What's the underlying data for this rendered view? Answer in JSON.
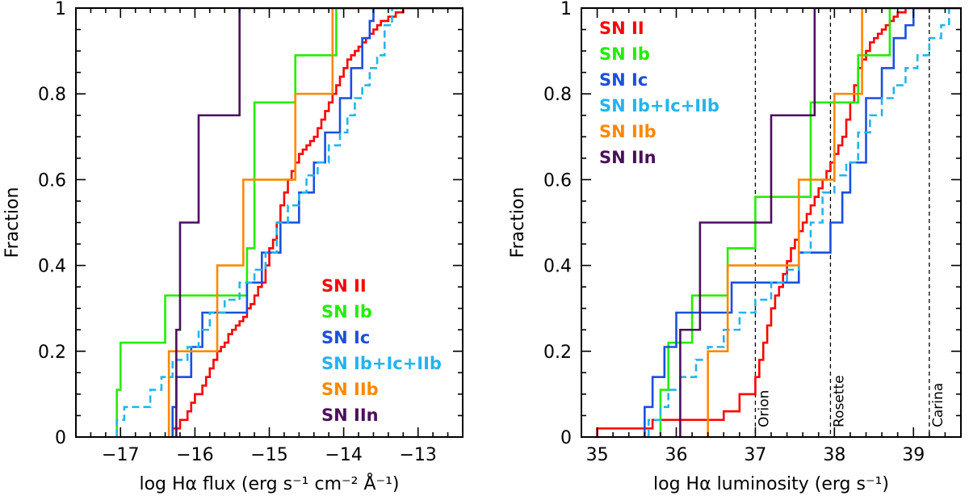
{
  "chart_data": [
    {
      "type": "line",
      "step": true,
      "ylabel": "Fraction",
      "xlabel": "log Hα flux (erg s⁻¹ cm⁻² Å⁻¹)",
      "xlim": [
        -17.6,
        -12.4
      ],
      "ylim": [
        0,
        1
      ],
      "xticks": [
        -17,
        -16,
        -15,
        -14,
        -13
      ],
      "xtick_labels": [
        "−17",
        "−16",
        "−15",
        "−14",
        "−13"
      ],
      "yticks": [
        0,
        0.2,
        0.4,
        0.6,
        0.8,
        1
      ],
      "ytick_labels": [
        "0",
        "0.2",
        "0.4",
        "0.6",
        "0.8",
        "1"
      ],
      "legend_position": "lower-right",
      "series": [
        {
          "name": "SN II",
          "color": "#ff0000",
          "dash": false,
          "x": [
            -16.3,
            -16.2,
            -16.1,
            -16.05,
            -16.0,
            -15.9,
            -15.85,
            -15.8,
            -15.75,
            -15.7,
            -15.65,
            -15.6,
            -15.55,
            -15.5,
            -15.45,
            -15.4,
            -15.35,
            -15.3,
            -15.25,
            -15.2,
            -15.15,
            -15.1,
            -15.05,
            -15.0,
            -14.95,
            -14.9,
            -14.85,
            -14.8,
            -14.75,
            -14.7,
            -14.65,
            -14.6,
            -14.55,
            -14.5,
            -14.45,
            -14.4,
            -14.35,
            -14.3,
            -14.25,
            -14.2,
            -14.15,
            -14.1,
            -14.05,
            -14.0,
            -13.95,
            -13.9,
            -13.85,
            -13.8,
            -13.75,
            -13.7,
            -13.65,
            -13.6,
            -13.55,
            -13.5,
            -13.4,
            -13.3,
            -13.2,
            -13.1
          ],
          "y": [
            0.02,
            0.04,
            0.06,
            0.08,
            0.1,
            0.12,
            0.14,
            0.16,
            0.18,
            0.2,
            0.21,
            0.22,
            0.24,
            0.25,
            0.26,
            0.27,
            0.28,
            0.3,
            0.31,
            0.33,
            0.35,
            0.36,
            0.4,
            0.44,
            0.46,
            0.5,
            0.54,
            0.57,
            0.6,
            0.62,
            0.64,
            0.66,
            0.67,
            0.68,
            0.69,
            0.7,
            0.72,
            0.74,
            0.76,
            0.78,
            0.8,
            0.82,
            0.84,
            0.86,
            0.88,
            0.89,
            0.9,
            0.91,
            0.92,
            0.93,
            0.94,
            0.95,
            0.96,
            0.97,
            0.98,
            0.99,
            1.0,
            1.0
          ]
        },
        {
          "name": "SN Ib",
          "color": "#22ee00",
          "dash": false,
          "x": [
            -17.05,
            -17.0,
            -16.4,
            -15.3,
            -15.2,
            -14.65,
            -14.1
          ],
          "y": [
            0.11,
            0.22,
            0.33,
            0.44,
            0.78,
            0.89,
            1.0
          ]
        },
        {
          "name": "SN Ic",
          "color": "#1a4fe0",
          "dash": false,
          "x": [
            -16.3,
            -16.25,
            -16.05,
            -15.9,
            -15.3,
            -15.1,
            -14.85,
            -14.6,
            -14.4,
            -14.25,
            -14.05,
            -13.9,
            -13.75,
            -13.65,
            -13.6
          ],
          "y": [
            0.07,
            0.14,
            0.21,
            0.29,
            0.36,
            0.43,
            0.5,
            0.57,
            0.64,
            0.71,
            0.79,
            0.86,
            0.93,
            0.97,
            1.0
          ]
        },
        {
          "name": "SN Ib+Ic+IIb",
          "color": "#22b4ee",
          "dash": true,
          "x": [
            -17.05,
            -16.95,
            -16.6,
            -16.45,
            -16.3,
            -16.1,
            -15.95,
            -15.8,
            -15.6,
            -15.4,
            -15.2,
            -15.05,
            -14.9,
            -14.75,
            -14.6,
            -14.5,
            -14.35,
            -14.2,
            -14.05,
            -13.95,
            -13.85,
            -13.75,
            -13.65,
            -13.55,
            -13.45,
            -13.35
          ],
          "y": [
            0.04,
            0.07,
            0.11,
            0.14,
            0.18,
            0.21,
            0.25,
            0.29,
            0.32,
            0.36,
            0.39,
            0.43,
            0.5,
            0.54,
            0.57,
            0.61,
            0.64,
            0.68,
            0.71,
            0.75,
            0.79,
            0.82,
            0.86,
            0.89,
            0.96,
            1.0
          ]
        },
        {
          "name": "SN IIb",
          "color": "#ff8800",
          "dash": false,
          "x": [
            -16.35,
            -15.7,
            -15.35,
            -14.85,
            -14.65,
            -14.15,
            -14.1
          ],
          "y": [
            0.2,
            0.4,
            0.6,
            0.6,
            0.8,
            1.0,
            1.0
          ]
        },
        {
          "name": "SN IIn",
          "color": "#4b0f5c",
          "dash": false,
          "x": [
            -16.25,
            -16.2,
            -15.95,
            -15.4
          ],
          "y": [
            0.25,
            0.5,
            0.75,
            1.0
          ]
        }
      ],
      "legend": [
        "SN II",
        "SN Ib",
        "SN Ic",
        "SN Ib+Ic+IIb",
        "SN IIb",
        "SN IIn"
      ]
    },
    {
      "type": "line",
      "step": true,
      "ylabel": "Fraction",
      "xlabel": "log Hα luminosity (erg s⁻¹)",
      "xlim": [
        34.8,
        39.6
      ],
      "ylim": [
        0,
        1
      ],
      "xticks": [
        35,
        36,
        37,
        38,
        39
      ],
      "xtick_labels": [
        "35",
        "36",
        "37",
        "38",
        "39"
      ],
      "yticks": [
        0,
        0.2,
        0.4,
        0.6,
        0.8,
        1
      ],
      "ytick_labels": [
        "0",
        "0.2",
        "0.4",
        "0.6",
        "0.8",
        "1"
      ],
      "legend_position": "top-left",
      "reference_lines": [
        {
          "x": 37.0,
          "label": "Orion"
        },
        {
          "x": 37.95,
          "label": "Rosette"
        },
        {
          "x": 39.2,
          "label": "Carina"
        }
      ],
      "series": [
        {
          "name": "SN II",
          "color": "#ff0000",
          "dash": false,
          "x": [
            35.0,
            35.7,
            36.6,
            36.8,
            37.0,
            37.05,
            37.1,
            37.15,
            37.2,
            37.25,
            37.3,
            37.35,
            37.4,
            37.45,
            37.5,
            37.55,
            37.6,
            37.65,
            37.7,
            37.75,
            37.8,
            37.85,
            37.9,
            37.95,
            38.0,
            38.05,
            38.1,
            38.15,
            38.2,
            38.25,
            38.3,
            38.35,
            38.4,
            38.45,
            38.5,
            38.55,
            38.6,
            38.65,
            38.7,
            38.75,
            38.8,
            38.9,
            39.0,
            39.1,
            39.2,
            39.3
          ],
          "y": [
            0.02,
            0.04,
            0.06,
            0.1,
            0.14,
            0.18,
            0.22,
            0.26,
            0.3,
            0.33,
            0.35,
            0.38,
            0.41,
            0.44,
            0.46,
            0.48,
            0.5,
            0.52,
            0.54,
            0.56,
            0.58,
            0.6,
            0.62,
            0.64,
            0.66,
            0.68,
            0.7,
            0.74,
            0.78,
            0.82,
            0.86,
            0.88,
            0.9,
            0.92,
            0.93,
            0.94,
            0.95,
            0.96,
            0.97,
            0.98,
            0.99,
            1.0,
            1.0,
            1.0,
            1.0,
            1.0
          ]
        },
        {
          "name": "SN Ib",
          "color": "#22ee00",
          "dash": false,
          "x": [
            35.8,
            35.9,
            36.2,
            36.65,
            37.0,
            37.7,
            38.3,
            38.7
          ],
          "y": [
            0.11,
            0.22,
            0.33,
            0.44,
            0.56,
            0.78,
            0.89,
            1.0
          ]
        },
        {
          "name": "SN Ic",
          "color": "#1a4fe0",
          "dash": false,
          "x": [
            35.6,
            35.7,
            35.85,
            36.0,
            36.7,
            37.55,
            37.95,
            38.1,
            38.2,
            38.4,
            38.6,
            38.75,
            38.9,
            39.0
          ],
          "y": [
            0.07,
            0.14,
            0.21,
            0.29,
            0.36,
            0.43,
            0.5,
            0.57,
            0.64,
            0.79,
            0.86,
            0.93,
            0.96,
            1.0
          ]
        },
        {
          "name": "SN Ib+Ic+IIb",
          "color": "#22b4ee",
          "dash": true,
          "x": [
            35.65,
            35.8,
            35.9,
            36.05,
            36.25,
            36.4,
            36.6,
            36.8,
            37.0,
            37.2,
            37.4,
            37.55,
            37.7,
            37.85,
            38.0,
            38.15,
            38.3,
            38.45,
            38.6,
            38.75,
            38.9,
            39.05,
            39.2,
            39.35,
            39.45
          ],
          "y": [
            0.04,
            0.07,
            0.11,
            0.14,
            0.18,
            0.21,
            0.25,
            0.29,
            0.32,
            0.36,
            0.39,
            0.43,
            0.5,
            0.57,
            0.61,
            0.64,
            0.71,
            0.75,
            0.79,
            0.82,
            0.86,
            0.89,
            0.93,
            0.96,
            1.0
          ]
        },
        {
          "name": "SN IIb",
          "color": "#ff8800",
          "dash": false,
          "x": [
            36.4,
            36.65,
            37.55,
            38.0,
            38.35,
            38.7
          ],
          "y": [
            0.2,
            0.4,
            0.6,
            0.8,
            1.0,
            1.0
          ]
        },
        {
          "name": "SN IIn",
          "color": "#4b0f5c",
          "dash": false,
          "x": [
            36.05,
            36.3,
            37.2,
            37.75
          ],
          "y": [
            0.25,
            0.5,
            0.75,
            1.0
          ]
        }
      ],
      "legend": [
        "SN II",
        "SN Ib",
        "SN Ic",
        "SN Ib+Ic+IIb",
        "SN IIb",
        "SN IIn"
      ]
    }
  ]
}
